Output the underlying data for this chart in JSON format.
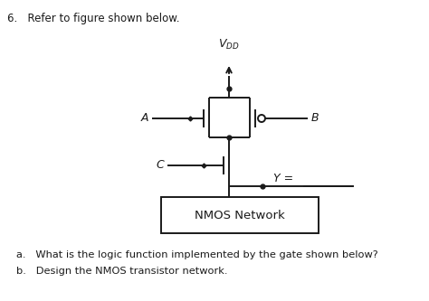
{
  "bg_color": "#ffffff",
  "line_color": "#1a1a1a",
  "title_text": "6.   Refer to figure shown below.",
  "vdd_label": "$V_{DD}$",
  "A_label": "A",
  "B_label": "B",
  "C_label": "C",
  "Y_label": "Y =",
  "box_label": "NMOS Network",
  "footer_a": "a.   What is the logic function implemented by the gate shown below?",
  "footer_b": "b.   Design the NMOS transistor network.",
  "figsize": [
    4.74,
    3.33
  ],
  "dpi": 100
}
